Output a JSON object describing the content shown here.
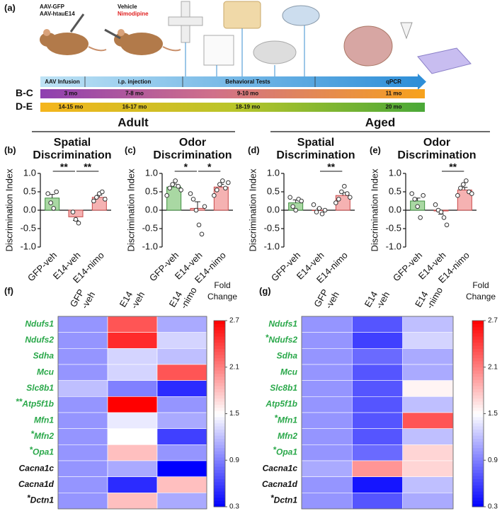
{
  "panel_a": {
    "label": "(a)",
    "virus": [
      "AAV-GFP",
      "AAV-htauE14"
    ],
    "treatment": [
      "Vehicle",
      "Nimodipine"
    ],
    "stages": [
      "AAV Infusion",
      "i.p. injection",
      "Behavioral Tests",
      "qPCR"
    ],
    "cohorts": [
      {
        "name": "B-C",
        "ages": [
          "3 mo",
          "7-8 mo",
          "9-10 mo",
          "11 mo"
        ]
      },
      {
        "name": "D-E",
        "ages": [
          "14-15 mo",
          "16-17 mo",
          "18-19 mo",
          "20 mo"
        ]
      }
    ]
  },
  "groups": [
    "Adult",
    "Aged"
  ],
  "chart_data": [
    {
      "type": "bar",
      "panel": "(b)",
      "title": [
        "Spatial",
        "Discrimination"
      ],
      "y_label": "Discrimination Index",
      "categories": [
        "GFP-veh",
        "E14-veh",
        "E14-nimo"
      ],
      "values": [
        0.33,
        -0.18,
        0.35
      ],
      "errors": [
        0.1,
        0.1,
        0.06
      ],
      "points": [
        [
          0.45,
          0.2,
          0.05,
          0.5
        ],
        [
          -0.05,
          -0.25,
          -0.35
        ],
        [
          0.25,
          0.35,
          0.45,
          0.5,
          0.3
        ]
      ],
      "colors": [
        "#a9d8a3",
        "#f5b2b2",
        "#f5b2b2"
      ],
      "edge_colors": [
        "#3f8f3f",
        "#c94a4a",
        "#c94a4a"
      ],
      "ylim": [
        -1,
        1
      ],
      "yticks": [
        {
          "value": -1,
          "label": "-1.0"
        },
        -0.5,
        {
          "value": 0,
          "label": "0.0"
        },
        0.5,
        {
          "value": 1,
          "label": "1.0"
        }
      ],
      "brackets": [
        {
          "groups": [
            "GFP-veh",
            "E14-veh"
          ],
          "label": "**"
        },
        {
          "groups": [
            "E14-veh",
            "E14-nimo"
          ],
          "label": "**"
        }
      ]
    },
    {
      "type": "bar",
      "panel": "(c)",
      "title": [
        "Odor",
        "Discrimination"
      ],
      "y_label": "Discrimination Index",
      "categories": [
        "GFP-veh",
        "E14-veh",
        "E14-nimo"
      ],
      "values": [
        0.63,
        0.05,
        0.63
      ],
      "errors": [
        0.08,
        0.18,
        0.07
      ],
      "points": [
        [
          0.4,
          0.6,
          0.7,
          0.8,
          0.65,
          0.55
        ],
        [
          0.45,
          0.3,
          0.0,
          -0.4,
          -0.65,
          0.1
        ],
        [
          0.4,
          0.55,
          0.7,
          0.8,
          0.6,
          0.75
        ]
      ],
      "colors": [
        "#a9d8a3",
        "#f5b2b2",
        "#f5b2b2"
      ],
      "edge_colors": [
        "#3f8f3f",
        "#c94a4a",
        "#c94a4a"
      ],
      "ylim": [
        -1,
        1
      ],
      "yticks": [
        {
          "value": -1,
          "label": "-1.0"
        },
        -0.5,
        {
          "value": 0,
          "label": "0.0"
        },
        0.5,
        {
          "value": 1,
          "label": "1.0"
        }
      ],
      "brackets": [
        {
          "groups": [
            "GFP-veh",
            "E14-veh"
          ],
          "label": "*"
        },
        {
          "groups": [
            "E14-veh",
            "E14-nimo"
          ],
          "label": "*"
        }
      ]
    },
    {
      "type": "bar",
      "panel": "(d)",
      "title": [
        "Spatial",
        "Discrimination"
      ],
      "y_label": "Discrimination Index",
      "categories": [
        "GFP-veh",
        "E14-veh",
        "E14-nimo"
      ],
      "values": [
        0.2,
        0.0,
        0.4
      ],
      "errors": [
        0.08,
        0.05,
        0.08
      ],
      "points": [
        [
          0.35,
          0.1,
          0.0,
          0.3,
          0.25
        ],
        [
          0.15,
          -0.05,
          0.05,
          -0.1,
          0.0
        ],
        [
          0.2,
          0.3,
          0.5,
          0.65,
          0.45,
          0.35
        ]
      ],
      "colors": [
        "#a9d8a3",
        "#f5b2b2",
        "#f5b2b2"
      ],
      "edge_colors": [
        "#3f8f3f",
        "#c94a4a",
        "#c94a4a"
      ],
      "ylim": [
        -1,
        1
      ],
      "yticks": [
        {
          "value": -1,
          "label": "-1.0"
        },
        -0.5,
        {
          "value": 0,
          "label": "0.0"
        },
        0.5,
        {
          "value": 1,
          "label": "1.0"
        }
      ],
      "brackets": [
        {
          "groups": [
            "E14-veh",
            "E14-nimo"
          ],
          "label": "**"
        }
      ]
    },
    {
      "type": "bar",
      "panel": "(e)",
      "title": [
        "Odor",
        "Discrimination"
      ],
      "y_label": "Discrimination Index",
      "categories": [
        "GFP-veh",
        "E14-veh",
        "E14-nimo"
      ],
      "values": [
        0.25,
        -0.02,
        0.55
      ],
      "errors": [
        0.08,
        0.09,
        0.07
      ],
      "points": [
        [
          0.45,
          0.3,
          0.1,
          -0.2,
          0.4
        ],
        [
          0.15,
          0.0,
          -0.05,
          -0.2,
          -0.4
        ],
        [
          0.4,
          0.6,
          0.7,
          0.8,
          0.5,
          0.45
        ]
      ],
      "colors": [
        "#a9d8a3",
        "#f5b2b2",
        "#f5b2b2"
      ],
      "edge_colors": [
        "#3f8f3f",
        "#c94a4a",
        "#c94a4a"
      ],
      "ylim": [
        -1,
        1
      ],
      "yticks": [
        {
          "value": -1,
          "label": "-1.0"
        },
        -0.5,
        {
          "value": 0,
          "label": "0.0"
        },
        0.5,
        {
          "value": 1,
          "label": "1.0"
        }
      ],
      "brackets": [
        {
          "groups": [
            "E14-veh",
            "E14-nimo"
          ],
          "label": "**"
        }
      ]
    },
    {
      "type": "heatmap",
      "panel": "(f)",
      "columns": [
        [
          "GFP",
          "-veh"
        ],
        [
          "E14",
          "-veh"
        ],
        [
          "E14",
          "-nimo"
        ]
      ],
      "rows": [
        "Ndufs1",
        "Ndufs2",
        "Sdha",
        "Mcu",
        "Slc8b1",
        "Atp5f1b",
        "Mfn1",
        "Mfn2",
        "Opa1",
        "Cacna1c",
        "Cacna1d",
        "Dctn1"
      ],
      "row_marks": [
        null,
        null,
        null,
        null,
        null,
        "**",
        null,
        "*",
        "*",
        null,
        null,
        "*"
      ],
      "row_colors": [
        "#2aa84a",
        "#2aa84a",
        "#2aa84a",
        "#2aa84a",
        "#2aa84a",
        "#2aa84a",
        "#2aa84a",
        "#2aa84a",
        "#2aa84a",
        "#111111",
        "#111111",
        "#111111"
      ],
      "values": [
        [
          1.0,
          2.3,
          1.1
        ],
        [
          1.0,
          2.5,
          1.3
        ],
        [
          1.0,
          1.3,
          1.2
        ],
        [
          1.0,
          1.3,
          2.3
        ],
        [
          1.2,
          0.9,
          0.5
        ],
        [
          1.0,
          2.7,
          1.0
        ],
        [
          1.0,
          1.4,
          1.1
        ],
        [
          1.0,
          1.5,
          0.6
        ],
        [
          1.0,
          1.8,
          1.0
        ],
        [
          1.0,
          1.1,
          0.3
        ],
        [
          1.0,
          0.5,
          1.8
        ],
        [
          1.0,
          1.8,
          1.1
        ]
      ],
      "colorbar_title": [
        "Fold",
        "Change"
      ],
      "clim": [
        0.3,
        2.7
      ],
      "cticks": [
        0.3,
        0.9,
        1.5,
        2.1,
        2.7
      ],
      "colormap": [
        "#0000ff",
        "#ffffff",
        "#ff0000"
      ]
    },
    {
      "type": "heatmap",
      "panel": "(g)",
      "columns": [
        [
          "GFP",
          "-veh"
        ],
        [
          "E14",
          "-veh"
        ],
        [
          "E14",
          "-nimo"
        ]
      ],
      "rows": [
        "Ndufs1",
        "Ndufs2",
        "Sdha",
        "Mcu",
        "Slc8b1",
        "Atp5f1b",
        "Mfn1",
        "Mfn2",
        "Opa1",
        "Cacna1c",
        "Cacna1d",
        "Dctn1"
      ],
      "row_marks": [
        null,
        "*",
        null,
        null,
        null,
        null,
        "*",
        null,
        "*",
        null,
        null,
        "*"
      ],
      "row_colors": [
        "#2aa84a",
        "#2aa84a",
        "#2aa84a",
        "#2aa84a",
        "#2aa84a",
        "#2aa84a",
        "#2aa84a",
        "#2aa84a",
        "#2aa84a",
        "#111111",
        "#111111",
        "#111111"
      ],
      "values": [
        [
          1.0,
          0.7,
          1.2
        ],
        [
          1.0,
          0.6,
          1.3
        ],
        [
          1.0,
          0.8,
          1.1
        ],
        [
          1.0,
          0.7,
          1.1
        ],
        [
          1.0,
          0.7,
          1.55
        ],
        [
          1.0,
          0.7,
          1.2
        ],
        [
          1.0,
          0.7,
          2.3
        ],
        [
          1.0,
          0.7,
          1.2
        ],
        [
          1.0,
          0.8,
          1.7
        ],
        [
          1.1,
          2.0,
          1.7
        ],
        [
          1.0,
          0.4,
          1.2
        ],
        [
          1.0,
          0.7,
          1.1
        ]
      ],
      "colorbar_title": [
        "Fold",
        "Change"
      ],
      "clim": [
        0.3,
        2.7
      ],
      "cticks": [
        0.3,
        0.9,
        1.5,
        2.1,
        2.7
      ],
      "colormap": [
        "#0000ff",
        "#ffffff",
        "#ff0000"
      ]
    }
  ]
}
